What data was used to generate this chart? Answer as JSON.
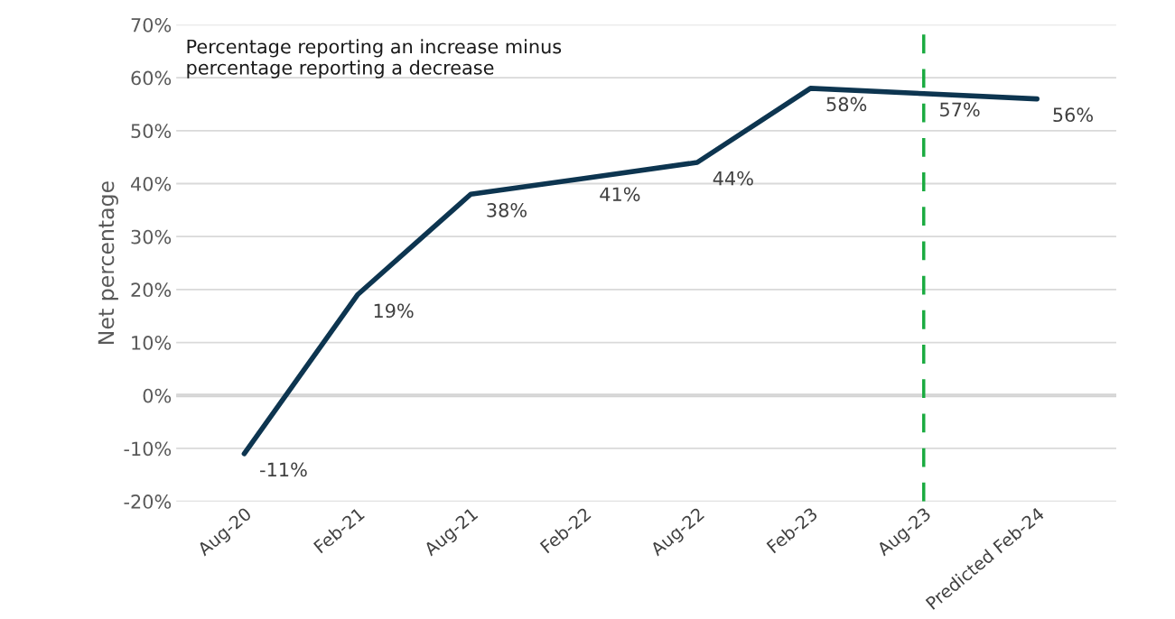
{
  "chart_data": {
    "type": "line",
    "categories": [
      "Aug-20",
      "Feb-21",
      "Aug-21",
      "Feb-22",
      "Aug-22",
      "Feb-23",
      "Aug-23",
      "Predicted Feb-24"
    ],
    "series": [
      {
        "color": "#0d3550",
        "values": [
          -11,
          19,
          38,
          41,
          44,
          58,
          57,
          56
        ],
        "value_labels": [
          "-11%",
          "19%",
          "38%",
          "41%",
          "44%",
          "58%",
          "57%",
          "56%"
        ]
      }
    ],
    "ylabel": "Net percentage",
    "ylim": [
      -20,
      70
    ],
    "yticks": [
      {
        "value": -20,
        "label": "-20%"
      },
      {
        "value": -10,
        "label": "-10%"
      },
      {
        "value": 0,
        "label": "0%"
      },
      {
        "value": 10,
        "label": "10%"
      },
      {
        "value": 20,
        "label": "20%"
      },
      {
        "value": 30,
        "label": "30%"
      },
      {
        "value": 40,
        "label": "40%"
      },
      {
        "value": 50,
        "label": "50%"
      },
      {
        "value": 60,
        "label": "60%"
      },
      {
        "value": 70,
        "label": "70%"
      }
    ],
    "grid": "y",
    "legend": false,
    "marker": "none",
    "line_style": "solid",
    "ref_lines": [
      {
        "axis": "x",
        "value": "Aug-23",
        "color": "#1aab40",
        "line_style": "dashed"
      }
    ],
    "annotations": [
      "Percentage reporting an increase minus\npercentage reporting a decrease"
    ]
  }
}
